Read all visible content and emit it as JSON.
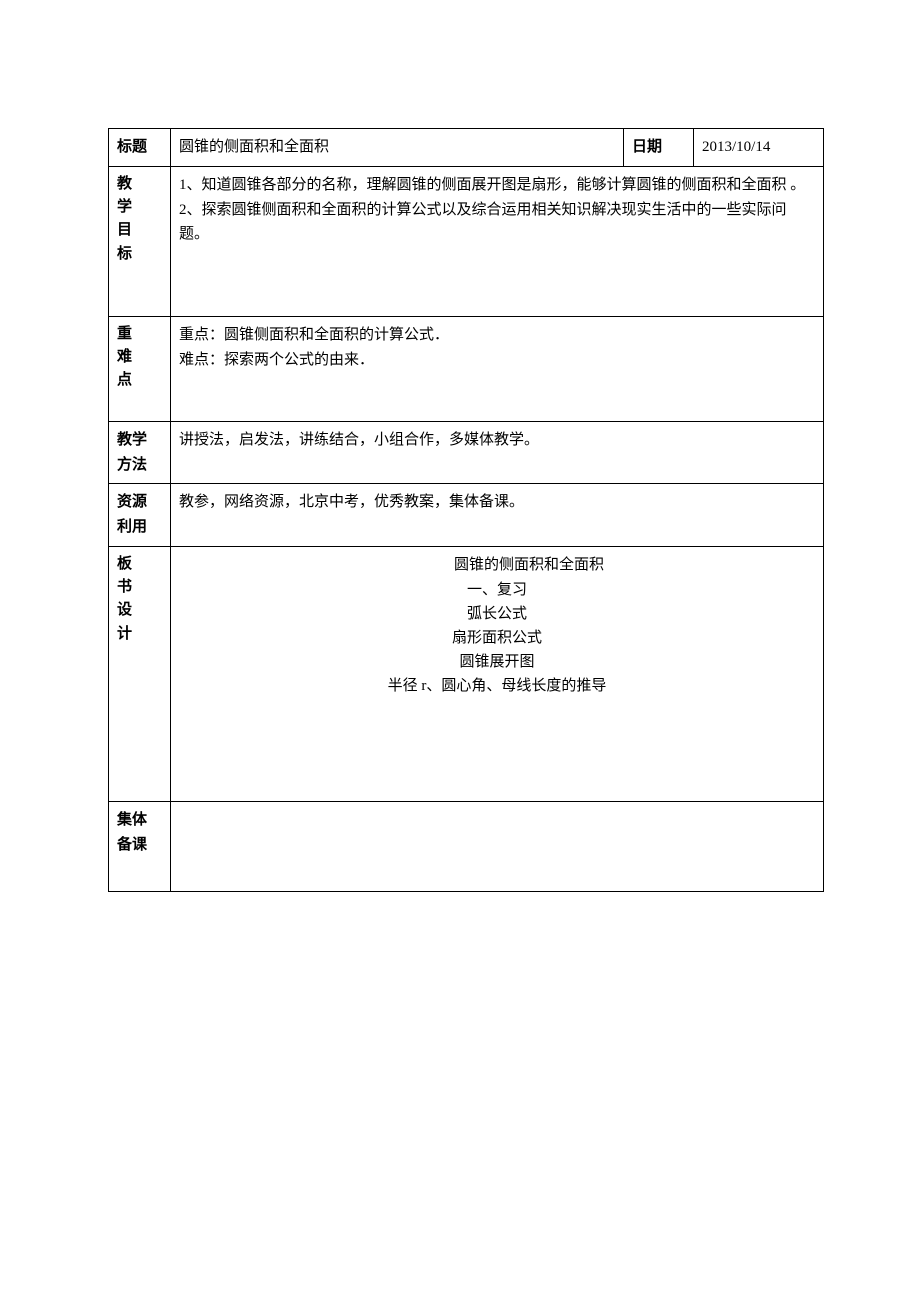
{
  "row_title": {
    "label": "标题",
    "value": "圆锥的侧面积和全面积",
    "date_label": "日期",
    "date_value": "2013/10/14"
  },
  "row_objectives": {
    "label_c1": "教",
    "label_c2": "学",
    "label_c3": "目",
    "label_c4": "标",
    "line1": "1、知道圆锥各部分的名称，理解圆锥的侧面展开图是扇形，能够计算圆锥的侧面积和全面积 。",
    "line2": "2、探索圆锥侧面积和全面积的计算公式以及综合运用相关知识解决现实生活中的一些实际问题。"
  },
  "row_keys": {
    "label_c1": "重",
    "label_c2": "难",
    "label_c3": "点",
    "line1": "重点：圆锥侧面积和全面积的计算公式．",
    "line2": "难点：探索两个公式的由来．"
  },
  "row_methods": {
    "label_l1": "教学",
    "label_l2": "方法",
    "value": "讲授法，启发法，讲练结合，小组合作，多媒体教学。"
  },
  "row_resources": {
    "label_l1": "资源",
    "label_l2": "利用",
    "value": "教参，网络资源，北京中考，优秀教案，集体备课。"
  },
  "row_board": {
    "label_c1": "板",
    "label_c2": "书",
    "label_c3": "设",
    "label_c4": "计",
    "title": "圆锥的侧面积和全面积",
    "l1": "一、复习",
    "l2": "弧长公式",
    "l3": "扇形面积公式",
    "l4": "圆锥展开图",
    "l5": "半径 r、圆心角、母线长度的推导"
  },
  "row_group": {
    "label_l1": "集体",
    "label_l2": "备课",
    "value": ""
  }
}
